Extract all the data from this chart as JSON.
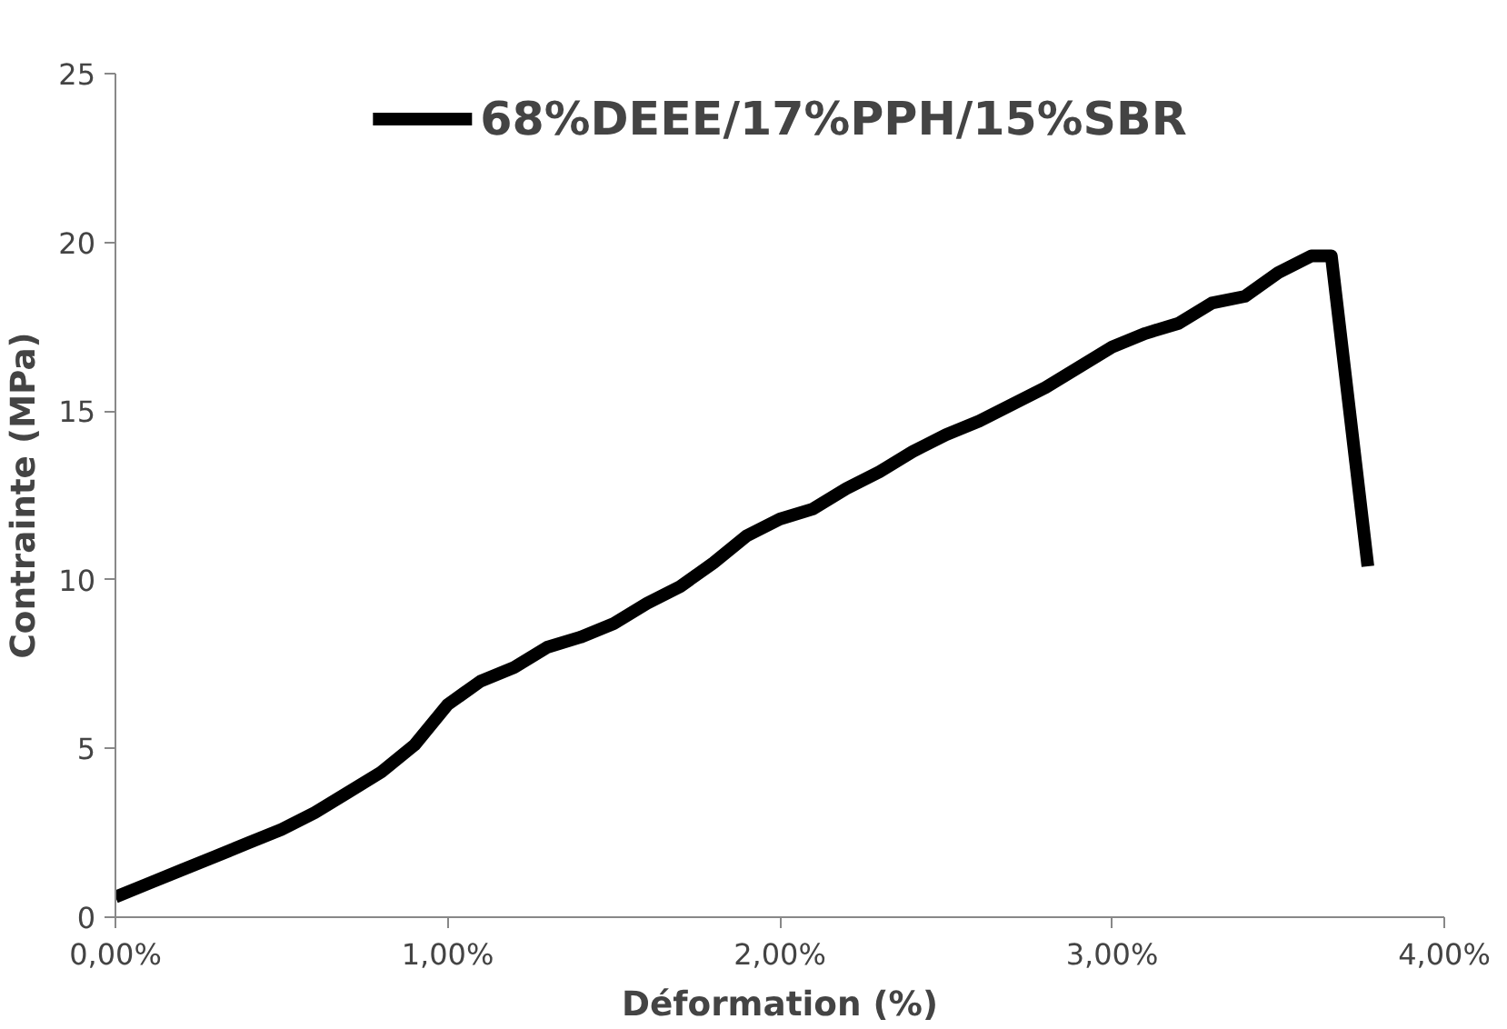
{
  "chart_data": {
    "type": "line",
    "xlabel": "Déformation (%)",
    "ylabel": "Contrainte (MPa)",
    "x": [
      0,
      0.1,
      0.2,
      0.3,
      0.4,
      0.5,
      0.6,
      0.7,
      0.8,
      0.9,
      1.0,
      1.1,
      1.2,
      1.3,
      1.4,
      1.5,
      1.6,
      1.7,
      1.8,
      1.9,
      2.0,
      2.1,
      2.2,
      2.3,
      2.4,
      2.5,
      2.6,
      2.7,
      2.8,
      2.9,
      3.0,
      3.1,
      3.2,
      3.3,
      3.4,
      3.5,
      3.6,
      3.66,
      3.77
    ],
    "series": [
      {
        "name": "68%DEEE/17%PPH/15%SBR",
        "color": "#000000",
        "values": [
          0.6,
          1.0,
          1.4,
          1.8,
          2.2,
          2.6,
          3.1,
          3.7,
          4.3,
          5.1,
          6.3,
          7.0,
          7.4,
          8.0,
          8.3,
          8.7,
          9.3,
          9.8,
          10.5,
          11.3,
          11.8,
          12.1,
          12.7,
          13.2,
          13.8,
          14.3,
          14.7,
          15.2,
          15.7,
          16.3,
          16.9,
          17.3,
          17.6,
          18.2,
          18.4,
          19.1,
          19.6,
          19.6,
          10.4
        ]
      }
    ],
    "xlim": [
      0,
      4
    ],
    "ylim": [
      0,
      25
    ],
    "xticks": [
      {
        "value": 0,
        "label": "0,00%"
      },
      {
        "value": 1,
        "label": "1,00%"
      },
      {
        "value": 2,
        "label": "2,00%"
      },
      {
        "value": 3,
        "label": "3,00%"
      },
      {
        "value": 4,
        "label": "4,00%"
      }
    ],
    "yticks": [
      0,
      5,
      10,
      15,
      20,
      25
    ],
    "grid": false,
    "legend": "top",
    "marker": "none",
    "line_style": "solid"
  }
}
